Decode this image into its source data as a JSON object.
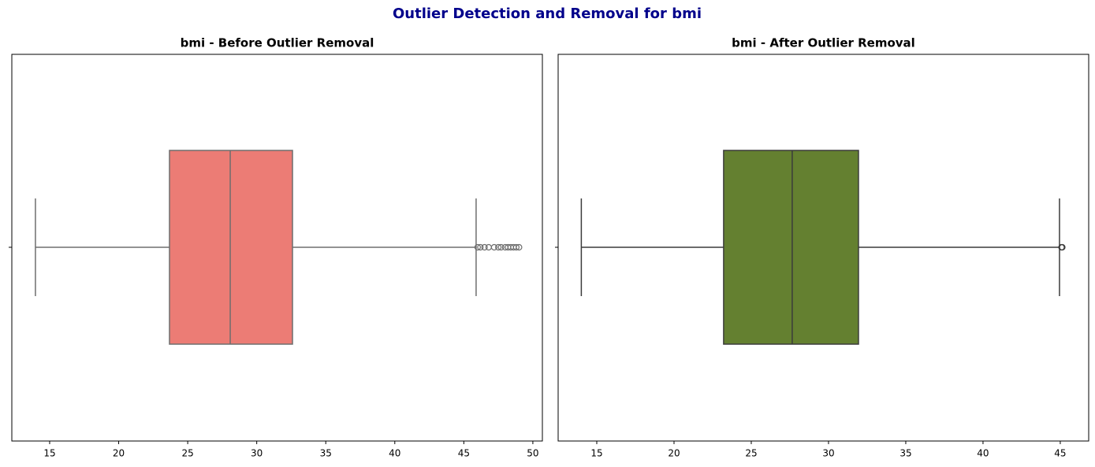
{
  "title": "Outlier Detection and Removal for bmi",
  "chart_data": [
    {
      "type": "box",
      "title": "bmi - Before Outlier Removal",
      "xlim": [
        12.26,
        50.69
      ],
      "xticks": [
        15,
        20,
        25,
        30,
        35,
        40,
        45,
        50
      ],
      "color": "#ec7c75",
      "line_color": "#6e6e6e",
      "whislo": 13.97,
      "q1": 23.68,
      "med": 28.08,
      "q3": 32.59,
      "whishi": 45.89,
      "fliers": [
        46.0,
        46.2,
        46.5,
        46.8,
        47.2,
        47.5,
        47.7,
        48.0,
        48.2,
        48.4,
        48.6,
        48.8,
        49.0
      ]
    },
    {
      "type": "box",
      "title": "bmi - After Outlier Removal",
      "xlim": [
        12.5,
        46.84
      ],
      "xticks": [
        15,
        20,
        25,
        30,
        35,
        40,
        45
      ],
      "color": "#648030",
      "line_color": "#3b3b3b",
      "whislo": 14.0,
      "q1": 23.21,
      "med": 27.65,
      "q3": 31.94,
      "whishi": 44.95,
      "fliers": [
        45.08,
        45.13
      ]
    }
  ]
}
